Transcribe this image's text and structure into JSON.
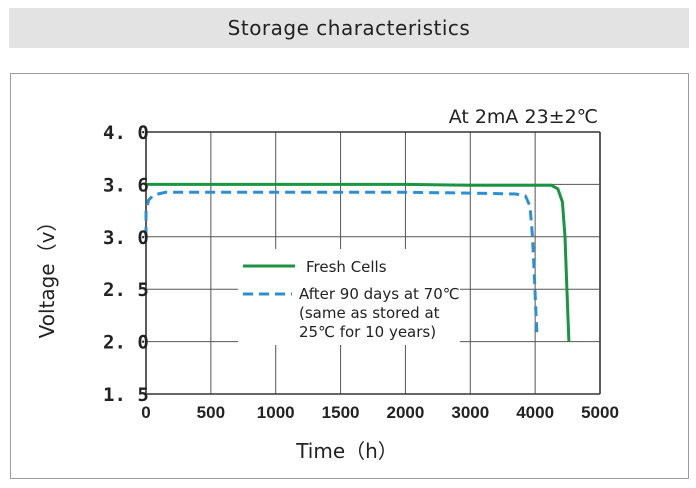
{
  "header": {
    "title": "Storage characteristics"
  },
  "chart_data": {
    "type": "line",
    "title": "Storage characteristics",
    "annotation": "At 2mA  23±2℃",
    "xlabel": "Time（h）",
    "ylabel": "Voltage（v）",
    "xlim": [
      0,
      5000
    ],
    "ylim": [
      1.5,
      4.0
    ],
    "x_ticks": [
      0,
      500,
      1000,
      1500,
      2000,
      3000,
      4000,
      5000
    ],
    "x_tick_labels": [
      "0",
      "500",
      "1000",
      "1500",
      "2000",
      "3000",
      "4000",
      "5000"
    ],
    "y_ticks": [
      1.5,
      2.0,
      2.5,
      3.0,
      3.6,
      4.0
    ],
    "y_tick_labels": [
      "1.5",
      "2.0",
      "2.5",
      "3.0",
      "3.6",
      "4.0"
    ],
    "grid": true,
    "legend_placement": "center",
    "series": [
      {
        "name": "Fresh Cells",
        "color": "#1a9441",
        "style": "solid",
        "x": [
          0,
          1000,
          2000,
          3000,
          4000,
          4250,
          4350,
          4420,
          4460,
          4490,
          4520
        ],
        "y": [
          3.6,
          3.6,
          3.6,
          3.59,
          3.59,
          3.59,
          3.55,
          3.4,
          3.0,
          2.5,
          2.0
        ]
      },
      {
        "name": "After 90 days at  70℃",
        "name_lines": [
          "(same as stored at",
          "25℃ for 10 years)"
        ],
        "color": "#2a8fd6",
        "style": "dashed",
        "x": [
          0,
          0,
          20,
          60,
          150,
          500,
          1000,
          2000,
          3000,
          3700,
          3850,
          3920,
          3960,
          3990,
          4010,
          4030
        ],
        "y": [
          3.0,
          3.3,
          3.42,
          3.48,
          3.51,
          3.51,
          3.51,
          3.51,
          3.5,
          3.49,
          3.47,
          3.35,
          3.0,
          2.6,
          2.3,
          2.05
        ]
      }
    ]
  }
}
